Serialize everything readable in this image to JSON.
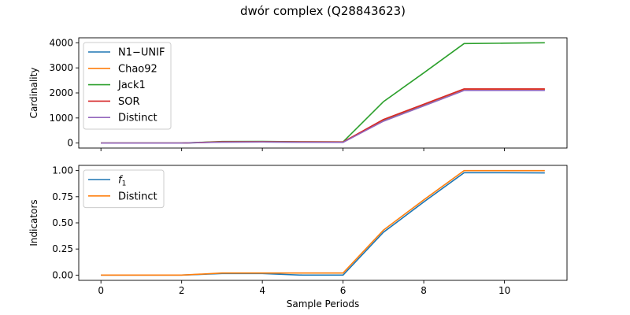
{
  "figure": {
    "title": "dwór complex (Q28843623)"
  },
  "chart_data": [
    {
      "type": "line",
      "title": "",
      "xlabel": "",
      "ylabel": "Cardinality",
      "xlim": [
        -0.55,
        11.55
      ],
      "ylim": [
        -200,
        4200
      ],
      "xticks": [
        0,
        2,
        4,
        6,
        8,
        10
      ],
      "yticks": [
        0,
        1000,
        2000,
        3000,
        4000
      ],
      "show_xtick_labels": false,
      "grid": false,
      "legend": "upper-left",
      "x": [
        0,
        1,
        2,
        3,
        4,
        5,
        6,
        7,
        8,
        9,
        10,
        11
      ],
      "series": [
        {
          "name": "N1−UNIF",
          "color": "#1f77b4",
          "values": [
            0,
            0,
            0,
            40,
            45,
            35,
            30,
            900,
            1500,
            2120,
            2120,
            2120
          ]
        },
        {
          "name": "Chao92",
          "color": "#ff7f0e",
          "values": [
            0,
            0,
            0,
            50,
            55,
            45,
            40,
            930,
            1540,
            2150,
            2150,
            2150
          ]
        },
        {
          "name": "Jack1",
          "color": "#2ca02c",
          "values": [
            0,
            0,
            0,
            60,
            65,
            50,
            45,
            1650,
            2800,
            3970,
            3985,
            4000
          ]
        },
        {
          "name": "SOR",
          "color": "#d62728",
          "values": [
            0,
            0,
            0,
            50,
            55,
            45,
            40,
            940,
            1550,
            2160,
            2160,
            2160
          ]
        },
        {
          "name": "Distinct",
          "color": "#9467bd",
          "values": [
            0,
            0,
            0,
            35,
            40,
            30,
            25,
            870,
            1480,
            2100,
            2100,
            2100
          ]
        }
      ]
    },
    {
      "type": "line",
      "title": "",
      "xlabel": "Sample Periods",
      "ylabel": "Indicators",
      "xlim": [
        -0.55,
        11.55
      ],
      "ylim": [
        -0.05,
        1.05
      ],
      "xticks": [
        0,
        2,
        4,
        6,
        8,
        10
      ],
      "yticks": [
        0.0,
        0.25,
        0.5,
        0.75,
        1.0
      ],
      "ytick_labels": [
        "0.00",
        "0.25",
        "0.50",
        "0.75",
        "1.00"
      ],
      "show_xtick_labels": true,
      "grid": false,
      "legend": "upper-left",
      "x": [
        0,
        1,
        2,
        3,
        4,
        5,
        6,
        7,
        8,
        9,
        10,
        11
      ],
      "series": [
        {
          "name": "f1",
          "color": "#1f77b4",
          "values": [
            0,
            0,
            0,
            0.015,
            0.015,
            0.0,
            0.0,
            0.41,
            0.7,
            0.98,
            0.98,
            0.978
          ]
        },
        {
          "name": "Distinct",
          "color": "#ff7f0e",
          "values": [
            0,
            0,
            0,
            0.02,
            0.02,
            0.02,
            0.02,
            0.43,
            0.72,
            1.0,
            1.0,
            1.0
          ]
        }
      ]
    }
  ]
}
